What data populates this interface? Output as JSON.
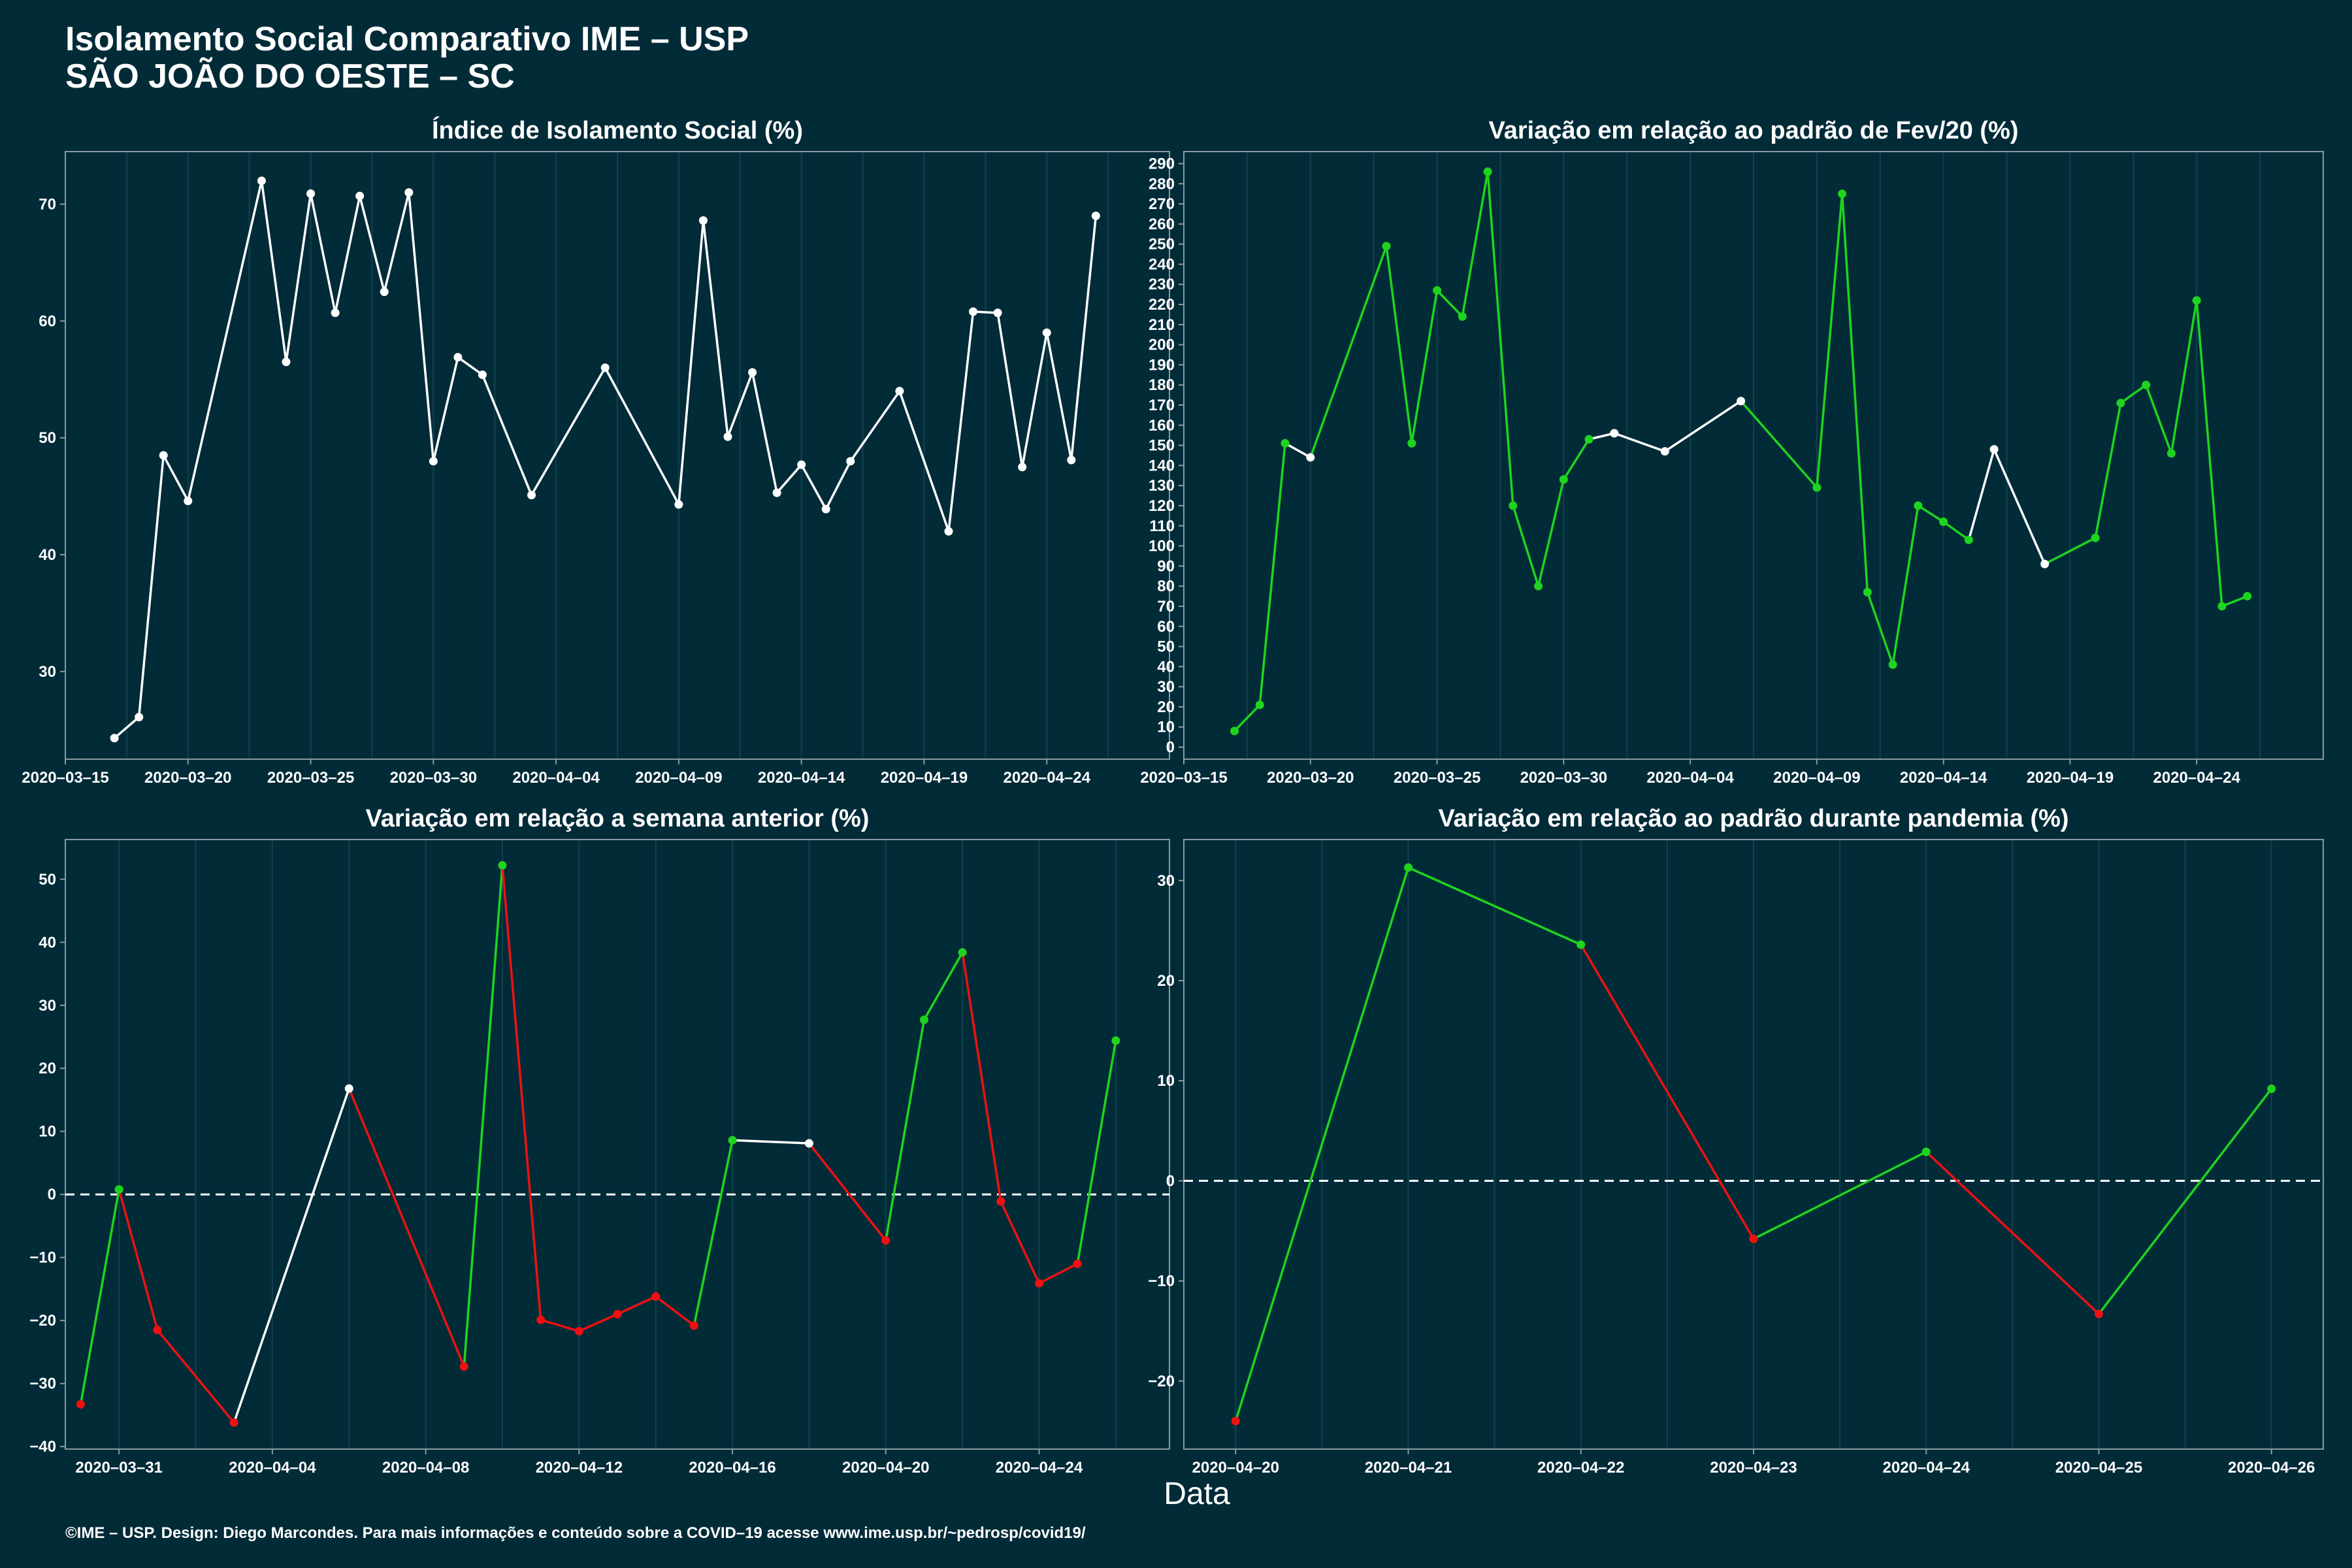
{
  "title": "Isolamento Social Comparativo IME – USP",
  "subtitle": "SÃO JOÃO DO OESTE – SC",
  "xlabel": "Data",
  "caption": "©IME – USP. Design: Diego Marcondes. Para mais informações e conteúdo sobre a COVID–19 acesse www.ime.usp.br/~pedrosp/covid19/",
  "colors": {
    "background": "#022b38",
    "axis": "#8a9aa2",
    "grid": "#13404d",
    "white": "#ffffff",
    "green": "#1ed41e",
    "red": "#ee1111"
  },
  "chart_data": [
    {
      "type": "line",
      "title": "Índice de Isolamento Social (%)",
      "xlim": [
        "2020-03-15",
        "2020-04-29"
      ],
      "ylim": [
        22.5,
        74.5
      ],
      "yticks": [
        30,
        40,
        50,
        60,
        70
      ],
      "xticks": [
        "2020-03-15",
        "2020-03-20",
        "2020-03-25",
        "2020-03-30",
        "2020-04-04",
        "2020-04-09",
        "2020-04-14",
        "2020-04-19",
        "2020-04-24"
      ],
      "points": [
        {
          "x": "2020-03-17",
          "y": 24.3,
          "c": "white"
        },
        {
          "x": "2020-03-18",
          "y": 26.1,
          "c": "white"
        },
        {
          "x": "2020-03-19",
          "y": 48.5,
          "c": "white"
        },
        {
          "x": "2020-03-20",
          "y": 44.6,
          "c": "white"
        },
        {
          "x": "2020-03-23",
          "y": 72.0,
          "c": "white"
        },
        {
          "x": "2020-03-24",
          "y": 56.5,
          "c": "white"
        },
        {
          "x": "2020-03-25",
          "y": 70.9,
          "c": "white"
        },
        {
          "x": "2020-03-26",
          "y": 60.7,
          "c": "white"
        },
        {
          "x": "2020-03-27",
          "y": 70.7,
          "c": "white"
        },
        {
          "x": "2020-03-28",
          "y": 62.5,
          "c": "white"
        },
        {
          "x": "2020-03-29",
          "y": 71.0,
          "c": "white"
        },
        {
          "x": "2020-03-30",
          "y": 48.0,
          "c": "white"
        },
        {
          "x": "2020-03-31",
          "y": 56.9,
          "c": "white"
        },
        {
          "x": "2020-04-01",
          "y": 55.4,
          "c": "white"
        },
        {
          "x": "2020-04-03",
          "y": 45.1,
          "c": "white"
        },
        {
          "x": "2020-04-06",
          "y": 56.0,
          "c": "white"
        },
        {
          "x": "2020-04-09",
          "y": 44.3,
          "c": "white"
        },
        {
          "x": "2020-04-10",
          "y": 68.6,
          "c": "white"
        },
        {
          "x": "2020-04-11",
          "y": 50.1,
          "c": "white"
        },
        {
          "x": "2020-04-12",
          "y": 55.6,
          "c": "white"
        },
        {
          "x": "2020-04-13",
          "y": 45.3,
          "c": "white"
        },
        {
          "x": "2020-04-14",
          "y": 47.7,
          "c": "white"
        },
        {
          "x": "2020-04-15",
          "y": 43.9,
          "c": "white"
        },
        {
          "x": "2020-04-16",
          "y": 48.0,
          "c": "white"
        },
        {
          "x": "2020-04-18",
          "y": 54.0,
          "c": "white"
        },
        {
          "x": "2020-04-20",
          "y": 42.0,
          "c": "white"
        },
        {
          "x": "2020-04-21",
          "y": 60.8,
          "c": "white"
        },
        {
          "x": "2020-04-22",
          "y": 60.7,
          "c": "white"
        },
        {
          "x": "2020-04-23",
          "y": 47.5,
          "c": "white"
        },
        {
          "x": "2020-04-24",
          "y": 59.0,
          "c": "white"
        },
        {
          "x": "2020-04-25",
          "y": 48.1,
          "c": "white"
        },
        {
          "x": "2020-04-26",
          "y": 69.0,
          "c": "white"
        }
      ]
    },
    {
      "type": "line",
      "title": "Variação em relação ao padrão de Fev/20 (%)",
      "xlim": [
        "2020-03-15",
        "2020-04-29"
      ],
      "ylim": [
        -6,
        296
      ],
      "yticks": [
        0,
        10,
        20,
        30,
        40,
        50,
        60,
        70,
        80,
        90,
        100,
        110,
        120,
        130,
        140,
        150,
        160,
        170,
        180,
        190,
        200,
        210,
        220,
        230,
        240,
        250,
        260,
        270,
        280,
        290
      ],
      "xticks": [
        "2020-03-15",
        "2020-03-20",
        "2020-03-25",
        "2020-03-30",
        "2020-04-04",
        "2020-04-09",
        "2020-04-14",
        "2020-04-19",
        "2020-04-24"
      ],
      "points": [
        {
          "x": "2020-03-17",
          "y": 8,
          "c": "green"
        },
        {
          "x": "2020-03-18",
          "y": 21,
          "c": "green"
        },
        {
          "x": "2020-03-19",
          "y": 151,
          "c": "green"
        },
        {
          "x": "2020-03-20",
          "y": 144,
          "c": "white"
        },
        {
          "x": "2020-03-23",
          "y": 249,
          "c": "green"
        },
        {
          "x": "2020-03-24",
          "y": 151,
          "c": "green"
        },
        {
          "x": "2020-03-25",
          "y": 227,
          "c": "green"
        },
        {
          "x": "2020-03-26",
          "y": 214,
          "c": "green"
        },
        {
          "x": "2020-03-27",
          "y": 286,
          "c": "green"
        },
        {
          "x": "2020-03-28",
          "y": 120,
          "c": "green"
        },
        {
          "x": "2020-03-29",
          "y": 80,
          "c": "green"
        },
        {
          "x": "2020-03-30",
          "y": 133,
          "c": "green"
        },
        {
          "x": "2020-03-31",
          "y": 153,
          "c": "green"
        },
        {
          "x": "2020-04-01",
          "y": 156,
          "c": "white"
        },
        {
          "x": "2020-04-03",
          "y": 147,
          "c": "white"
        },
        {
          "x": "2020-04-06",
          "y": 172,
          "c": "white"
        },
        {
          "x": "2020-04-09",
          "y": 129,
          "c": "green"
        },
        {
          "x": "2020-04-10",
          "y": 275,
          "c": "green"
        },
        {
          "x": "2020-04-11",
          "y": 77,
          "c": "green"
        },
        {
          "x": "2020-04-12",
          "y": 41,
          "c": "green"
        },
        {
          "x": "2020-04-13",
          "y": 120,
          "c": "green"
        },
        {
          "x": "2020-04-14",
          "y": 112,
          "c": "green"
        },
        {
          "x": "2020-04-15",
          "y": 103,
          "c": "green"
        },
        {
          "x": "2020-04-16",
          "y": 148,
          "c": "white"
        },
        {
          "x": "2020-04-18",
          "y": 91,
          "c": "white"
        },
        {
          "x": "2020-04-20",
          "y": 104,
          "c": "green"
        },
        {
          "x": "2020-04-21",
          "y": 171,
          "c": "green"
        },
        {
          "x": "2020-04-22",
          "y": 180,
          "c": "green"
        },
        {
          "x": "2020-04-23",
          "y": 146,
          "c": "green"
        },
        {
          "x": "2020-04-24",
          "y": 222,
          "c": "green"
        },
        {
          "x": "2020-04-25",
          "y": 70,
          "c": "green"
        },
        {
          "x": "2020-04-26",
          "y": 75,
          "c": "green"
        }
      ]
    },
    {
      "type": "line",
      "title": "Variação em relação a semana anterior (%)",
      "xlim": [
        "2020-03-29.6",
        "2020-04-27.4"
      ],
      "ylim": [
        -40.4,
        56.3
      ],
      "yticks": [
        -40,
        -30,
        -20,
        -10,
        0,
        10,
        20,
        30,
        40,
        50
      ],
      "xticks": [
        "2020-03-31",
        "2020-04-04",
        "2020-04-08",
        "2020-04-12",
        "2020-04-16",
        "2020-04-20",
        "2020-04-24"
      ],
      "zero_line": true,
      "points": [
        {
          "x": "2020-03-30",
          "y": -33.3,
          "c": "red"
        },
        {
          "x": "2020-03-31",
          "y": 0.8,
          "c": "green"
        },
        {
          "x": "2020-04-01",
          "y": -21.5,
          "c": "red"
        },
        {
          "x": "2020-04-03",
          "y": -36.2,
          "c": "red"
        },
        {
          "x": "2020-04-06",
          "y": 16.8,
          "c": "white"
        },
        {
          "x": "2020-04-09",
          "y": -27.3,
          "c": "red"
        },
        {
          "x": "2020-04-10",
          "y": 52.2,
          "c": "green"
        },
        {
          "x": "2020-04-11",
          "y": -19.9,
          "c": "red"
        },
        {
          "x": "2020-04-12",
          "y": -21.7,
          "c": "red"
        },
        {
          "x": "2020-04-13",
          "y": -19.0,
          "c": "red"
        },
        {
          "x": "2020-04-14",
          "y": -16.2,
          "c": "red"
        },
        {
          "x": "2020-04-15",
          "y": -20.8,
          "c": "red"
        },
        {
          "x": "2020-04-16",
          "y": 8.6,
          "c": "green"
        },
        {
          "x": "2020-04-18",
          "y": 8.1,
          "c": "white"
        },
        {
          "x": "2020-04-20",
          "y": -7.3,
          "c": "red"
        },
        {
          "x": "2020-04-21",
          "y": 27.7,
          "c": "green"
        },
        {
          "x": "2020-04-22",
          "y": 38.4,
          "c": "green"
        },
        {
          "x": "2020-04-23",
          "y": -1.1,
          "c": "red"
        },
        {
          "x": "2020-04-24",
          "y": -14.1,
          "c": "red"
        },
        {
          "x": "2020-04-25",
          "y": -11.0,
          "c": "red"
        },
        {
          "x": "2020-04-26",
          "y": 24.4,
          "c": "green"
        }
      ]
    },
    {
      "type": "line",
      "title": "Variação em relação ao padrão durante pandemia (%)",
      "xlim": [
        "2020-04-19.7",
        "2020-04-26.3"
      ],
      "ylim": [
        -26.8,
        34.1
      ],
      "yticks": [
        -20,
        -10,
        0,
        10,
        20,
        30
      ],
      "xticks": [
        "2020-04-20",
        "2020-04-21",
        "2020-04-22",
        "2020-04-23",
        "2020-04-24",
        "2020-04-25",
        "2020-04-26"
      ],
      "zero_line": true,
      "points": [
        {
          "x": "2020-04-20",
          "y": -24.0,
          "c": "red"
        },
        {
          "x": "2020-04-21",
          "y": 31.3,
          "c": "green"
        },
        {
          "x": "2020-04-22",
          "y": 23.6,
          "c": "green"
        },
        {
          "x": "2020-04-23",
          "y": -5.8,
          "c": "red"
        },
        {
          "x": "2020-04-24",
          "y": 2.9,
          "c": "green"
        },
        {
          "x": "2020-04-25",
          "y": -13.3,
          "c": "red"
        },
        {
          "x": "2020-04-26",
          "y": 9.2,
          "c": "green"
        }
      ]
    }
  ]
}
